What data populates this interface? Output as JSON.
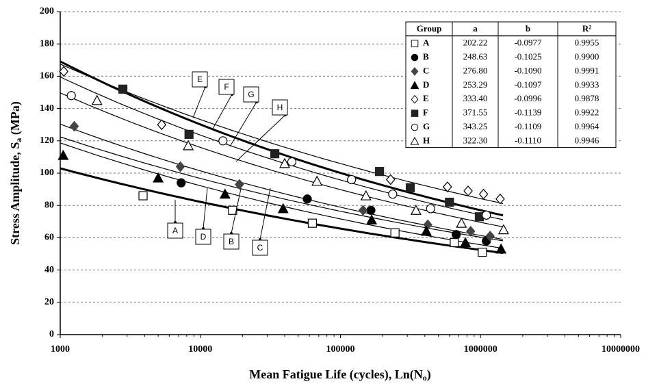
{
  "chart_data": {
    "type": "scatter",
    "x_label": [
      "Mean Fatigue Life (cycles), Ln(N",
      "o",
      ")"
    ],
    "y_label": [
      "Stress Amplitude, S",
      "a",
      " (MPa)"
    ],
    "xscale": "log",
    "xlim": [
      1000,
      10000000
    ],
    "xticks": [
      1000,
      10000,
      100000,
      1000000,
      10000000
    ],
    "ylim": [
      0,
      200
    ],
    "yticks": [
      0,
      20,
      40,
      60,
      80,
      100,
      120,
      140,
      160,
      180,
      200
    ],
    "grid": true,
    "series": [
      {
        "name": "A",
        "marker": "square-open",
        "color": "#000000",
        "line_width": 3,
        "x": [
          3900,
          17000,
          63000,
          245000,
          650000,
          1030000
        ],
        "values": [
          86,
          77,
          69,
          63,
          57,
          51
        ]
      },
      {
        "name": "B",
        "marker": "circle-filled",
        "color": "#000000",
        "line_width": 1.2,
        "x": [
          7300,
          58000,
          165000,
          670000,
          1100000
        ],
        "values": [
          94,
          84,
          77,
          62,
          58
        ]
      },
      {
        "name": "C",
        "marker": "diamond-filled",
        "color": "#444444",
        "line_width": 1.2,
        "x": [
          1260,
          7200,
          19000,
          145000,
          420000,
          850000,
          1170000
        ],
        "values": [
          129,
          104,
          93,
          77,
          68,
          64,
          61
        ]
      },
      {
        "name": "D",
        "marker": "triangle-filled",
        "color": "#000000",
        "line_width": 1.2,
        "x": [
          1050,
          5000,
          15000,
          39000,
          167000,
          410000,
          780000,
          1400000
        ],
        "values": [
          111,
          97,
          87,
          78,
          71,
          64,
          57,
          53
        ]
      },
      {
        "name": "E",
        "marker": "diamond-open",
        "color": "#000000",
        "line_width": 1.2,
        "x": [
          1060,
          5300,
          228000,
          580000,
          815000,
          1050000,
          1380000
        ],
        "values": [
          163,
          130,
          96,
          91.5,
          89,
          87,
          84
        ]
      },
      {
        "name": "F",
        "marker": "square-filled",
        "color": "#222222",
        "line_width": 3,
        "x": [
          2800,
          8300,
          34000,
          190000,
          315000,
          600000,
          980000
        ],
        "values": [
          152,
          124,
          112,
          101,
          91,
          82,
          73
        ]
      },
      {
        "name": "G",
        "marker": "circle-open",
        "color": "#000000",
        "line_width": 1.2,
        "x": [
          1200,
          14500,
          45000,
          120000,
          236000,
          440000,
          1100000
        ],
        "values": [
          148,
          120,
          107,
          96,
          87,
          78,
          74
        ]
      },
      {
        "name": "H",
        "marker": "triangle-open",
        "color": "#000000",
        "line_width": 1.2,
        "x": [
          1830,
          8200,
          40000,
          68000,
          152000,
          346000,
          730000,
          1460000
        ],
        "values": [
          145,
          117,
          106,
          95,
          86,
          77,
          69,
          65
        ]
      }
    ],
    "annotations": [
      "E",
      "F",
      "G",
      "H",
      "A",
      "D",
      "B",
      "C"
    ],
    "table": {
      "header": [
        "Group",
        "a",
        "b",
        "R²"
      ],
      "rows": [
        [
          "A",
          "202.22",
          "-0.0977",
          "0.9955"
        ],
        [
          "B",
          "248.63",
          "-0.1025",
          "0.9900"
        ],
        [
          "C",
          "276.80",
          "-0.1090",
          "0.9991"
        ],
        [
          "D",
          "253.29",
          "-0.1097",
          "0.9933"
        ],
        [
          "E",
          "333.40",
          "-0.0996",
          "0.9878"
        ],
        [
          "F",
          "371.55",
          "-0.1139",
          "0.9922"
        ],
        [
          "G",
          "343.25",
          "-0.1109",
          "0.9964"
        ],
        [
          "H",
          "322.30",
          "-0.1110",
          "0.9946"
        ]
      ]
    }
  }
}
